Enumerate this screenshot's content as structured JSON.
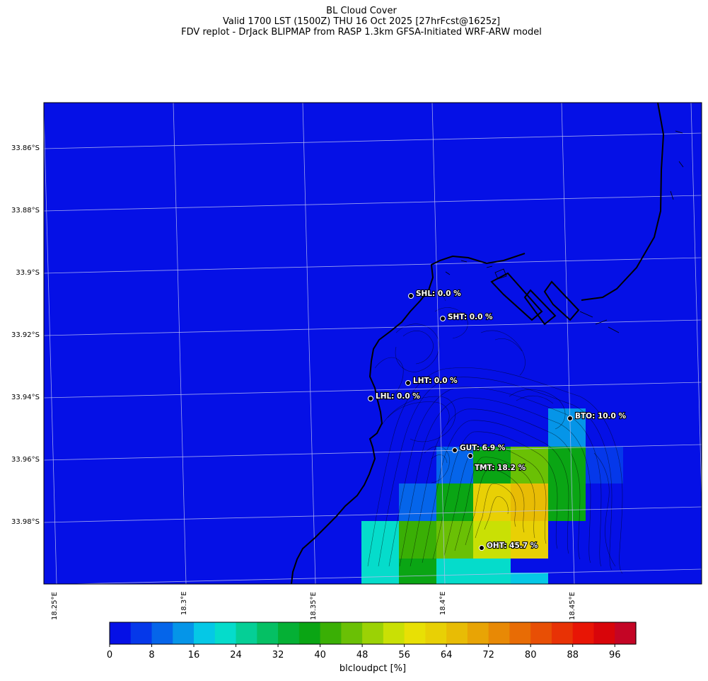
{
  "titles": {
    "line1": "BL Cloud Cover",
    "line2": "Valid 1700 LST (1500Z) THU 16 Oct 2025 [27hrFcst@1625z]",
    "line3": "FDV replot - DrJack BLIPMAP from RASP 1.3km GFSA-Initiated WRF-ARW model"
  },
  "axes": {
    "lat_labels": [
      "33.86°S",
      "33.88°S",
      "33.9°S",
      "33.92°S",
      "33.94°S",
      "33.96°S",
      "33.98°S"
    ],
    "lon_labels": [
      "18.25°E",
      "18.3°E",
      "18.35°E",
      "18.4°E",
      "18.45°E"
    ]
  },
  "stations": [
    {
      "id": "SHL",
      "label": "SHL: 0.0 %",
      "value": 0.0
    },
    {
      "id": "SHT",
      "label": "SHT: 0.0 %",
      "value": 0.0
    },
    {
      "id": "LHT",
      "label": "LHT: 0.0 %",
      "value": 0.0
    },
    {
      "id": "LHL",
      "label": "LHL: 0.0 %",
      "value": 0.0
    },
    {
      "id": "BTO",
      "label": "BTO: 10.0 %",
      "value": 10.0
    },
    {
      "id": "GUT",
      "label": "GUT: 6.9 %",
      "value": 6.9
    },
    {
      "id": "TMT",
      "label": "TMT: 18.2 %",
      "value": 18.2
    },
    {
      "id": "OHT",
      "label": "OHT: 45.7 %",
      "value": 45.7
    }
  ],
  "colorbar": {
    "label": "blcloudpct [%]",
    "tick_labels": [
      "0",
      "8",
      "16",
      "24",
      "32",
      "40",
      "48",
      "56",
      "64",
      "72",
      "80",
      "88",
      "96"
    ],
    "colors": [
      "#0510e6",
      "#0538ea",
      "#0565ea",
      "#0595e8",
      "#05c8e6",
      "#05dccb",
      "#05cf96",
      "#05c064",
      "#05b035",
      "#0aa514",
      "#3aaf05",
      "#6ac005",
      "#9bd205",
      "#c9e005",
      "#e8e005",
      "#e8d005",
      "#e8bc05",
      "#e8a405",
      "#e88905",
      "#e86c05",
      "#e84f05",
      "#e83205",
      "#e81505",
      "#d8050a",
      "#c40525"
    ]
  }
}
